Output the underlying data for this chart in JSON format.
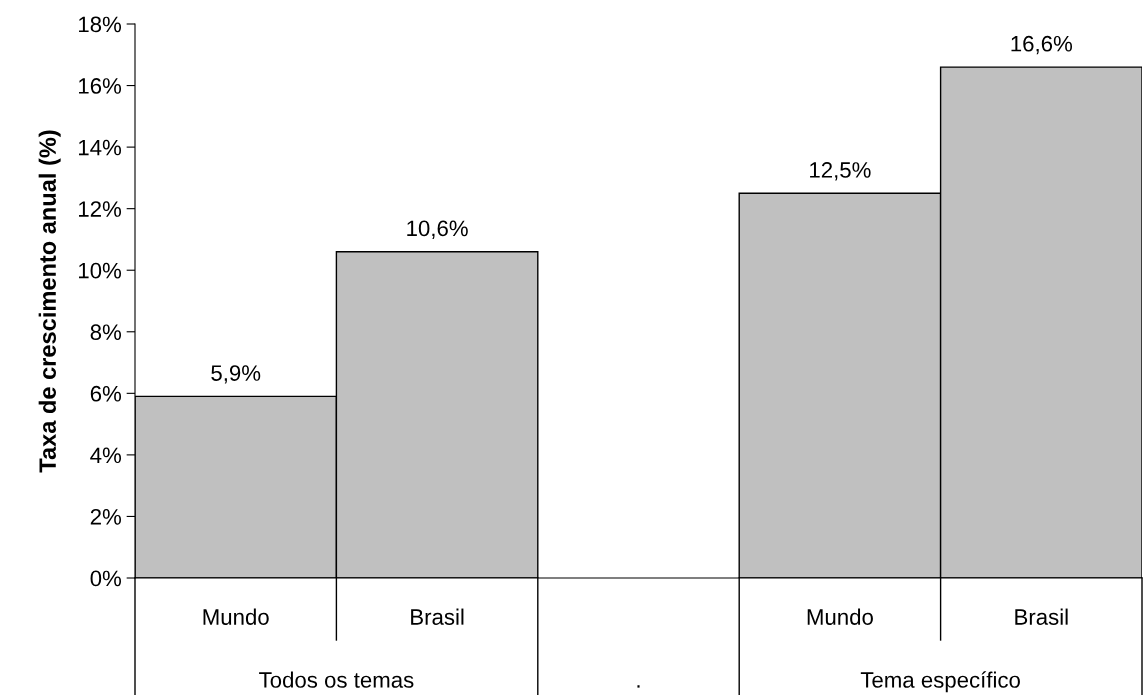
{
  "chart_data": {
    "type": "bar",
    "ylabel": "Taxa de crescimento anual (%)",
    "categories": [
      "Mundo",
      "Brasil",
      null,
      "Mundo",
      "Brasil"
    ],
    "values": [
      5.9,
      10.6,
      null,
      12.5,
      16.6
    ],
    "value_labels": [
      "5,9%",
      "10,6%",
      null,
      "12,5%",
      "16,6%"
    ],
    "color": "#c0c0c0",
    "ylim": [
      0,
      18
    ],
    "yticks": [
      {
        "value": 0,
        "label": "0%"
      },
      {
        "value": 2,
        "label": "2%"
      },
      {
        "value": 4,
        "label": "4%"
      },
      {
        "value": 6,
        "label": "6%"
      },
      {
        "value": 8,
        "label": "8%"
      },
      {
        "value": 10,
        "label": "10%"
      },
      {
        "value": 12,
        "label": "12%"
      },
      {
        "value": 14,
        "label": "14%"
      },
      {
        "value": 16,
        "label": "16%"
      },
      {
        "value": 18,
        "label": "18%"
      }
    ],
    "annotations": [
      "Todos os temas",
      ".",
      "Tema específico"
    ],
    "grid": false
  }
}
